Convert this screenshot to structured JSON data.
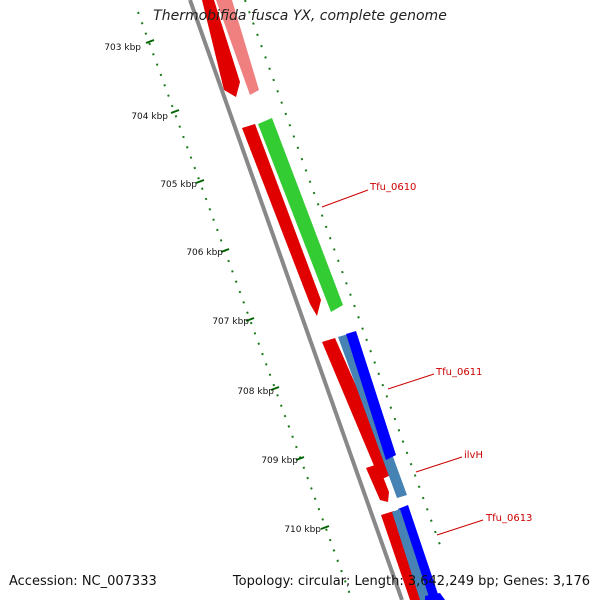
{
  "title": "Thermobifida fusca YX, complete genome",
  "footer": {
    "accession": "Accession: NC_007333",
    "topology": "Topology: circular; Length: 3,642,249 bp; Genes: 3,176"
  },
  "scale_labels": [
    "703 kbp",
    "704 kbp",
    "705 kbp",
    "706 kbp",
    "707 kbp",
    "708 kbp",
    "709 kbp",
    "710 kbp"
  ],
  "gene_labels": [
    "Tfu_0610",
    "Tfu_0611",
    "ilvH",
    "Tfu_0613"
  ],
  "colors": {
    "backbone": "#888888",
    "cds": "#ff0000",
    "cds_pale": "#f08080",
    "green_feature": "#33cc33",
    "blue_feature": "#0000ff",
    "steelblue_feature": "#4682b4",
    "tick": "#006400",
    "label": "#cc0000"
  }
}
